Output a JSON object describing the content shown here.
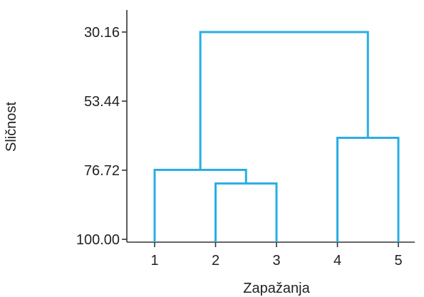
{
  "chart_data": {
    "type": "dendrogram",
    "xlabel": "Zapažanja",
    "ylabel": "Sličnost",
    "y_axis": {
      "ticks": [
        30.16,
        53.44,
        76.72,
        100.0
      ],
      "tick_labels": [
        "30.16",
        "53.44",
        "76.72",
        "100.00"
      ],
      "range": [
        100.0,
        26.0
      ],
      "direction": "inverted"
    },
    "leaves": [
      "1",
      "2",
      "3",
      "4",
      "5"
    ],
    "merges": [
      {
        "left": "2",
        "right": "3",
        "similarity": 81.2
      },
      {
        "left": "4",
        "right": "5",
        "similarity": 65.8
      },
      {
        "left": "1",
        "right": "2-3",
        "similarity": 76.6
      },
      {
        "left": "1-2-3",
        "right": "4-5",
        "similarity": 30.16
      }
    ],
    "line_color": "#29aee3",
    "grid": false
  }
}
